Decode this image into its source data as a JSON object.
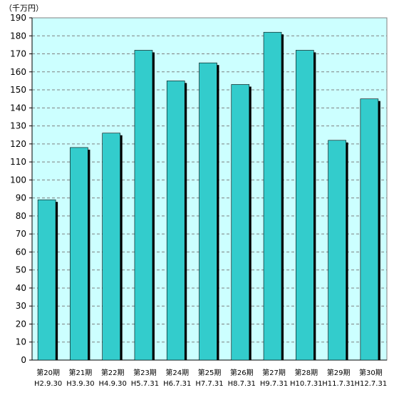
{
  "chart_data": {
    "type": "bar",
    "unit_label": "（千万円）",
    "categories": [
      {
        "period": "第20期",
        "date": "H2.9.30"
      },
      {
        "period": "第21期",
        "date": "H3.9.30"
      },
      {
        "period": "第22期",
        "date": "H4.9.30"
      },
      {
        "period": "第23期",
        "date": "H5.7.31"
      },
      {
        "period": "第24期",
        "date": "H6.7.31"
      },
      {
        "period": "第25期",
        "date": "H7.7.31"
      },
      {
        "period": "第26期",
        "date": "H8.7.31"
      },
      {
        "period": "第27期",
        "date": "H9.7.31"
      },
      {
        "period": "第28期",
        "date": "H10.7.31"
      },
      {
        "period": "第29期",
        "date": "H11.7.31"
      },
      {
        "period": "第30期",
        "date": "H12.7.31"
      }
    ],
    "values": [
      89,
      118,
      126,
      172,
      155,
      165,
      153,
      182,
      172,
      122,
      145
    ],
    "ylim": [
      0,
      190
    ],
    "yticks": [
      "0",
      "10",
      "20",
      "30",
      "40",
      "50",
      "60",
      "70",
      "80",
      "90",
      "100",
      "110",
      "120",
      "130",
      "140",
      "150",
      "160",
      "170",
      "180",
      "190"
    ],
    "grid": true,
    "colors": {
      "plot_background": "#ccffff",
      "bar_fill": "#33cccc",
      "bar_shadow": "#000000",
      "gridline": "#808080"
    }
  }
}
